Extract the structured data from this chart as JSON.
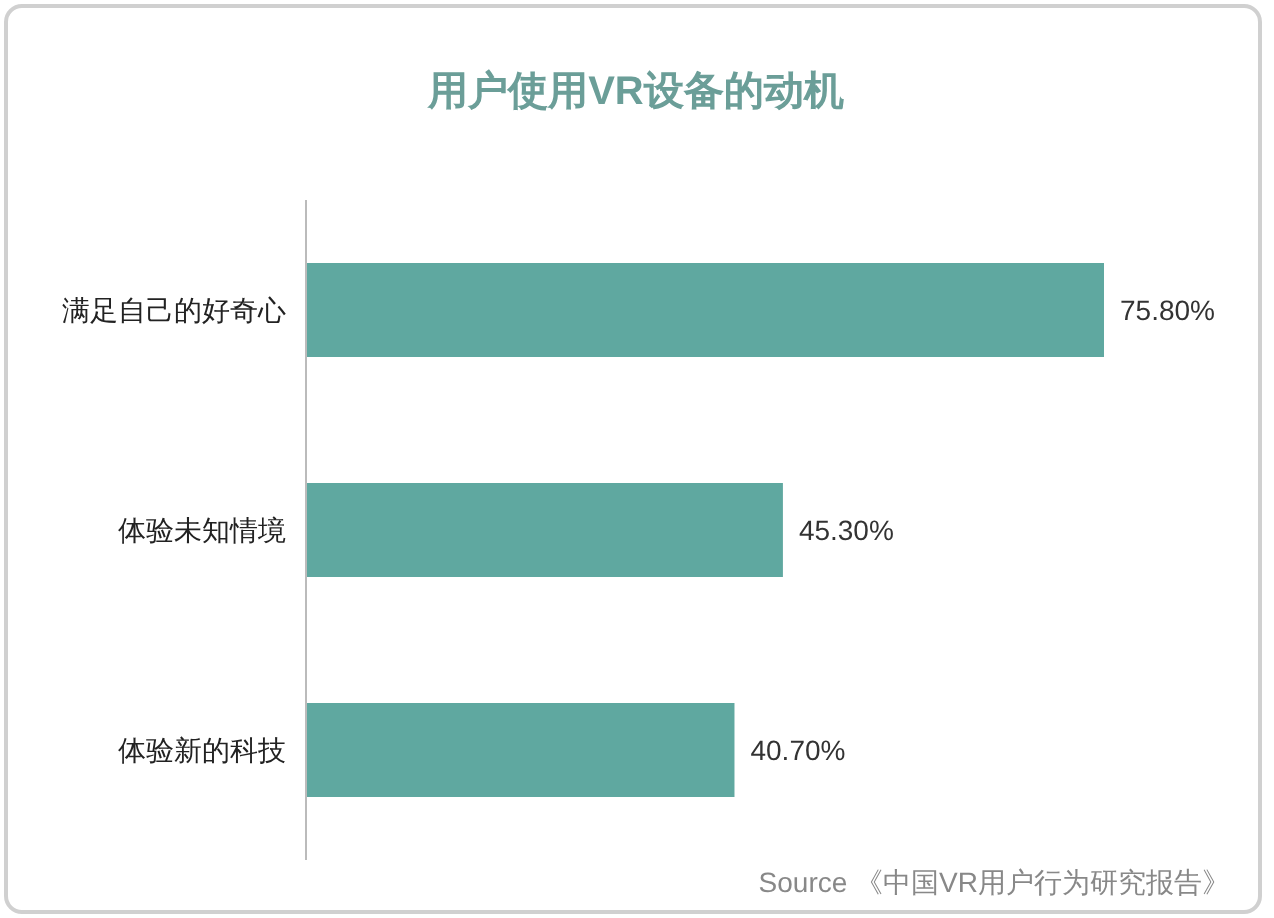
{
  "chart_data": {
    "type": "bar",
    "orientation": "horizontal",
    "title": "用户使用VR设备的动机",
    "categories": [
      "满足自己的好奇心",
      "体验未知情境",
      "体验新的科技"
    ],
    "values": [
      75.8,
      45.3,
      40.7
    ],
    "value_labels": [
      "75.80%",
      "45.30%",
      "40.70%"
    ],
    "color": "#5fa8a0",
    "annotations": [
      "Source 《中国VR用户行为研究报告》"
    ]
  }
}
